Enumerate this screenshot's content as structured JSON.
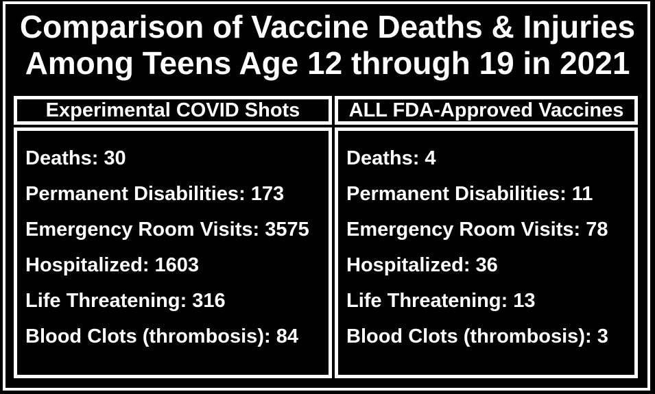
{
  "title": {
    "line1": "Comparison of Vaccine Deaths & Injuries",
    "line2": "Among Teens Age 12 through 19 in 2021"
  },
  "separator": ": ",
  "colors": {
    "background": "#000000",
    "text": "#ffffff",
    "border": "#ffffff"
  },
  "table": {
    "columns": [
      {
        "header": "Experimental COVID Shots",
        "items": [
          {
            "label": "Deaths",
            "value": "30"
          },
          {
            "label": "Permanent Disabilities",
            "value": "173"
          },
          {
            "label": "Emergency Room Visits",
            "value": "3575"
          },
          {
            "label": "Hospitalized",
            "value": "1603"
          },
          {
            "label": "Life Threatening",
            "value": "316"
          },
          {
            "label": "Blood Clots (thrombosis)",
            "value": "84"
          }
        ]
      },
      {
        "header": "ALL FDA-Approved Vaccines",
        "items": [
          {
            "label": "Deaths",
            "value": "4"
          },
          {
            "label": "Permanent Disabilities",
            "value": "11"
          },
          {
            "label": "Emergency Room Visits",
            "value": "78"
          },
          {
            "label": "Hospitalized",
            "value": "36"
          },
          {
            "label": "Life Threatening",
            "value": "13"
          },
          {
            "label": "Blood Clots (thrombosis)",
            "value": "3"
          }
        ]
      }
    ]
  },
  "chart_data": {
    "type": "table",
    "title": "Comparison of Vaccine Deaths & Injuries Among Teens Age 12 through 19 in 2021",
    "categories": [
      "Deaths",
      "Permanent Disabilities",
      "Emergency Room Visits",
      "Hospitalized",
      "Life Threatening",
      "Blood Clots (thrombosis)"
    ],
    "series": [
      {
        "name": "Experimental COVID Shots",
        "values": [
          30,
          173,
          3575,
          1603,
          316,
          84
        ]
      },
      {
        "name": "ALL FDA-Approved Vaccines",
        "values": [
          4,
          11,
          78,
          36,
          13,
          3
        ]
      }
    ],
    "legend_position": "column headers",
    "grid": false
  }
}
